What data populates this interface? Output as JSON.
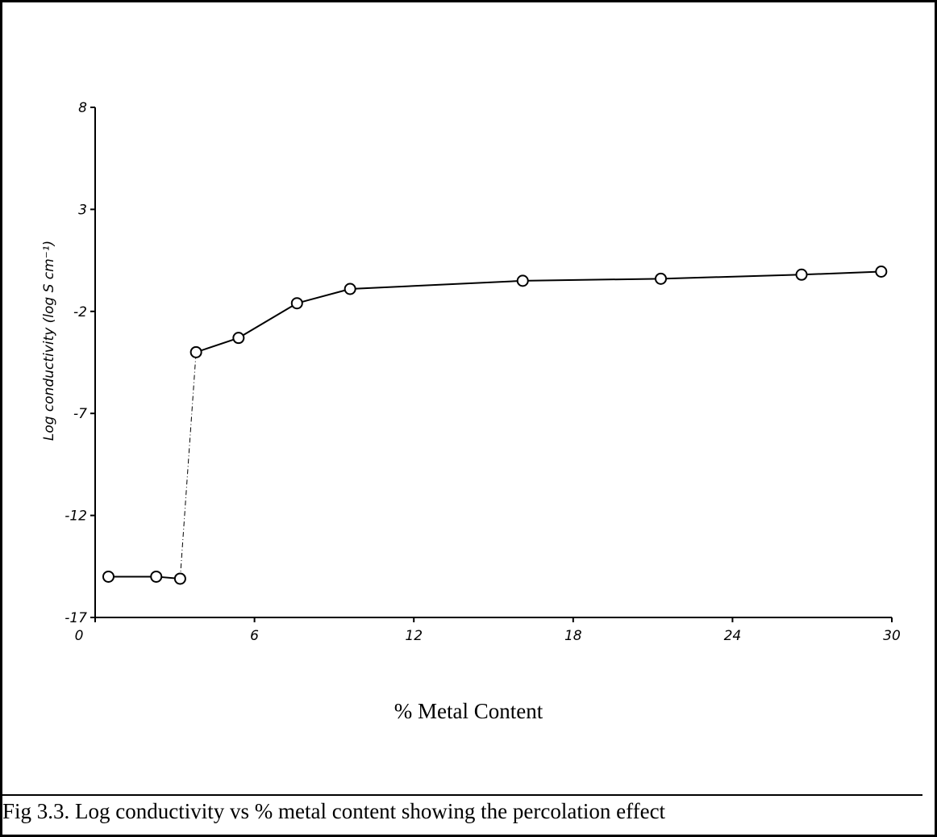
{
  "chart_data": {
    "type": "line",
    "title": "",
    "xlabel": "% Metal Content",
    "ylabel": "Log conductivity  (log S cm⁻¹)",
    "xlim": [
      0,
      30
    ],
    "ylim": [
      -17,
      8
    ],
    "x_ticks": [
      0,
      6,
      12,
      18,
      24,
      30
    ],
    "x_tick_labels": [
      "0",
      "6",
      "12",
      "18",
      "24",
      "30"
    ],
    "y_ticks": [
      8,
      3,
      -2,
      -7,
      -12,
      -17
    ],
    "y_tick_labels": [
      "8",
      "3",
      "-2",
      "-7",
      "-12",
      "-17"
    ],
    "grid": false,
    "series": [
      {
        "x": [
          0.5,
          2.3,
          3.2,
          3.8,
          5.4,
          7.6,
          9.6,
          16.1,
          21.3,
          26.6,
          29.6
        ],
        "y": [
          -15.0,
          -15.0,
          -15.1,
          -4.0,
          -3.3,
          -1.6,
          -0.9,
          -0.5,
          -0.4,
          -0.2,
          -0.05
        ]
      }
    ],
    "marker": "open-circle",
    "steep_segment_style": "dash-dot"
  },
  "caption": "Fig 3.3.  Log conductivity vs % metal content  showing the percolation effect"
}
